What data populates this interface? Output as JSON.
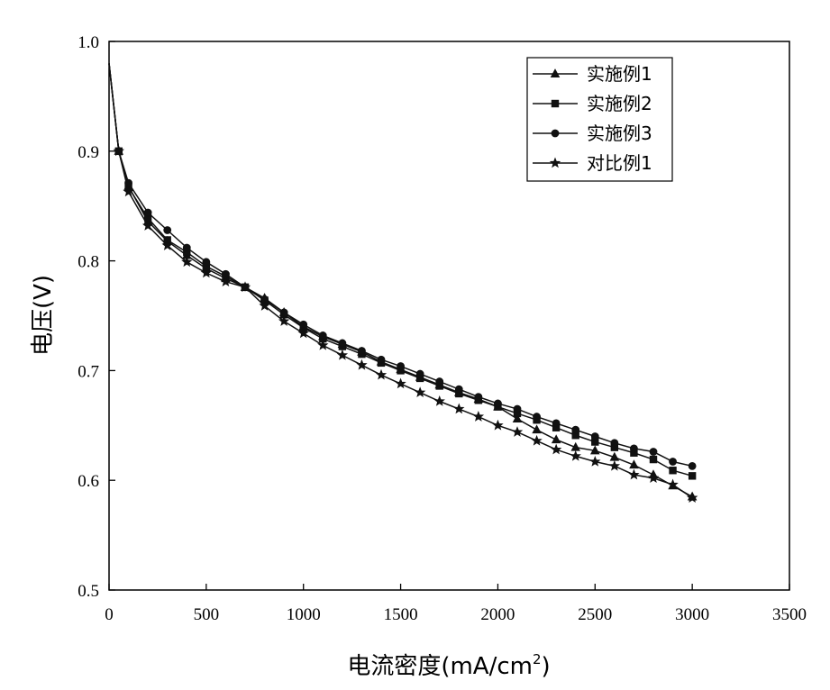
{
  "chart_data": {
    "type": "line",
    "title": "",
    "xlabel": "电流密度(mA/cm",
    "xlabel_sup": "2",
    "xlabel_close": ")",
    "ylabel": "电压(V)",
    "xlim": [
      0,
      3500
    ],
    "ylim": [
      0.5,
      1.0
    ],
    "xticks": [
      0,
      500,
      1000,
      1500,
      2000,
      2500,
      3000,
      3500
    ],
    "yticks": [
      0.5,
      0.6,
      0.7,
      0.8,
      0.9,
      1.0
    ],
    "xtick_labels": [
      "0",
      "500",
      "1000",
      "1500",
      "2000",
      "2500",
      "3000",
      "3500"
    ],
    "ytick_labels": [
      "0.5",
      "0.6",
      "0.7",
      "0.8",
      "0.9",
      "1.0"
    ],
    "grid": false,
    "legend_position": "top-right",
    "x": [
      0,
      50,
      100,
      200,
      300,
      400,
      500,
      600,
      700,
      800,
      900,
      1000,
      1100,
      1200,
      1300,
      1400,
      1500,
      1600,
      1700,
      1800,
      1900,
      2000,
      2100,
      2200,
      2300,
      2400,
      2500,
      2600,
      2700,
      2800,
      2900,
      3000
    ],
    "series": [
      {
        "name": "实施例1",
        "marker": "triangle",
        "values": [
          0.98,
          0.9,
          0.868,
          0.836,
          0.818,
          0.805,
          0.793,
          0.784,
          0.776,
          0.766,
          0.753,
          0.74,
          0.731,
          0.724,
          0.717,
          0.708,
          0.701,
          0.694,
          0.687,
          0.68,
          0.674,
          0.667,
          0.656,
          0.646,
          0.637,
          0.63,
          0.627,
          0.621,
          0.614,
          0.605,
          0.595,
          0.585
        ]
      },
      {
        "name": "实施例2",
        "marker": "square",
        "values": [
          0.98,
          0.9,
          0.867,
          0.839,
          0.819,
          0.808,
          0.795,
          0.786,
          0.776,
          0.764,
          0.751,
          0.739,
          0.729,
          0.722,
          0.715,
          0.707,
          0.7,
          0.693,
          0.686,
          0.679,
          0.673,
          0.667,
          0.661,
          0.655,
          0.648,
          0.641,
          0.635,
          0.63,
          0.625,
          0.619,
          0.609,
          0.604
        ]
      },
      {
        "name": "实施例3",
        "marker": "circle",
        "values": [
          0.98,
          0.9,
          0.871,
          0.844,
          0.828,
          0.812,
          0.799,
          0.788,
          0.776,
          0.765,
          0.753,
          0.742,
          0.732,
          0.725,
          0.718,
          0.71,
          0.704,
          0.697,
          0.69,
          0.683,
          0.676,
          0.67,
          0.665,
          0.658,
          0.652,
          0.646,
          0.64,
          0.634,
          0.629,
          0.626,
          0.617,
          0.613
        ]
      },
      {
        "name": "对比例1",
        "marker": "star",
        "values": [
          0.98,
          0.9,
          0.863,
          0.832,
          0.814,
          0.799,
          0.789,
          0.781,
          0.776,
          0.759,
          0.745,
          0.734,
          0.723,
          0.714,
          0.705,
          0.696,
          0.688,
          0.68,
          0.672,
          0.665,
          0.658,
          0.65,
          0.644,
          0.636,
          0.628,
          0.622,
          0.617,
          0.613,
          0.605,
          0.602,
          0.596,
          0.584
        ]
      }
    ]
  }
}
